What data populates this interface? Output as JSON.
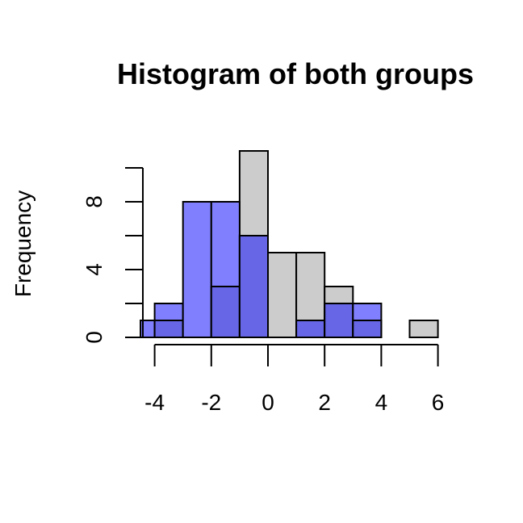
{
  "chart_data": {
    "type": "histogram",
    "title": "Histogram of both groups",
    "xlabel": "",
    "ylabel": "Frequency",
    "xlim": [
      -4.5,
      6
    ],
    "ylim": [
      0,
      10
    ],
    "x_ticks": [
      -4,
      -2,
      0,
      2,
      4,
      6
    ],
    "y_ticks": [
      0,
      4,
      8
    ],
    "y_minor_ticks": [
      2,
      6,
      10
    ],
    "grid": false,
    "legend": "none",
    "colors": {
      "gray_group": "#cccccc",
      "blue_group": "#8080ff",
      "overlap": "#6666e6"
    },
    "series": [
      {
        "color_key": "gray_group",
        "bin_width": 1,
        "bins": [
          {
            "x0": -4,
            "x1": -3,
            "count": 1
          },
          {
            "x0": -3,
            "x1": -2,
            "count": 0
          },
          {
            "x0": -2,
            "x1": -1,
            "count": 3
          },
          {
            "x0": -1,
            "x1": 0,
            "count": 11
          },
          {
            "x0": 0,
            "x1": 1,
            "count": 5
          },
          {
            "x0": 1,
            "x1": 2,
            "count": 5
          },
          {
            "x0": 2,
            "x1": 3,
            "count": 3
          },
          {
            "x0": 3,
            "x1": 4,
            "count": 1
          },
          {
            "x0": 4,
            "x1": 5,
            "count": 0
          },
          {
            "x0": 5,
            "x1": 6,
            "count": 1
          }
        ]
      },
      {
        "color_key": "blue_group",
        "bin_width": 1,
        "bins": [
          {
            "x0": -4.5,
            "x1": -4,
            "count": 1
          },
          {
            "x0": -4,
            "x1": -3,
            "count": 2
          },
          {
            "x0": -3,
            "x1": -2,
            "count": 8
          },
          {
            "x0": -2,
            "x1": -1,
            "count": 8
          },
          {
            "x0": -1,
            "x1": 0,
            "count": 6
          },
          {
            "x0": 0,
            "x1": 1,
            "count": 0
          },
          {
            "x0": 1,
            "x1": 2,
            "count": 1
          },
          {
            "x0": 2,
            "x1": 3,
            "count": 2
          },
          {
            "x0": 3,
            "x1": 4,
            "count": 2
          }
        ]
      }
    ]
  }
}
